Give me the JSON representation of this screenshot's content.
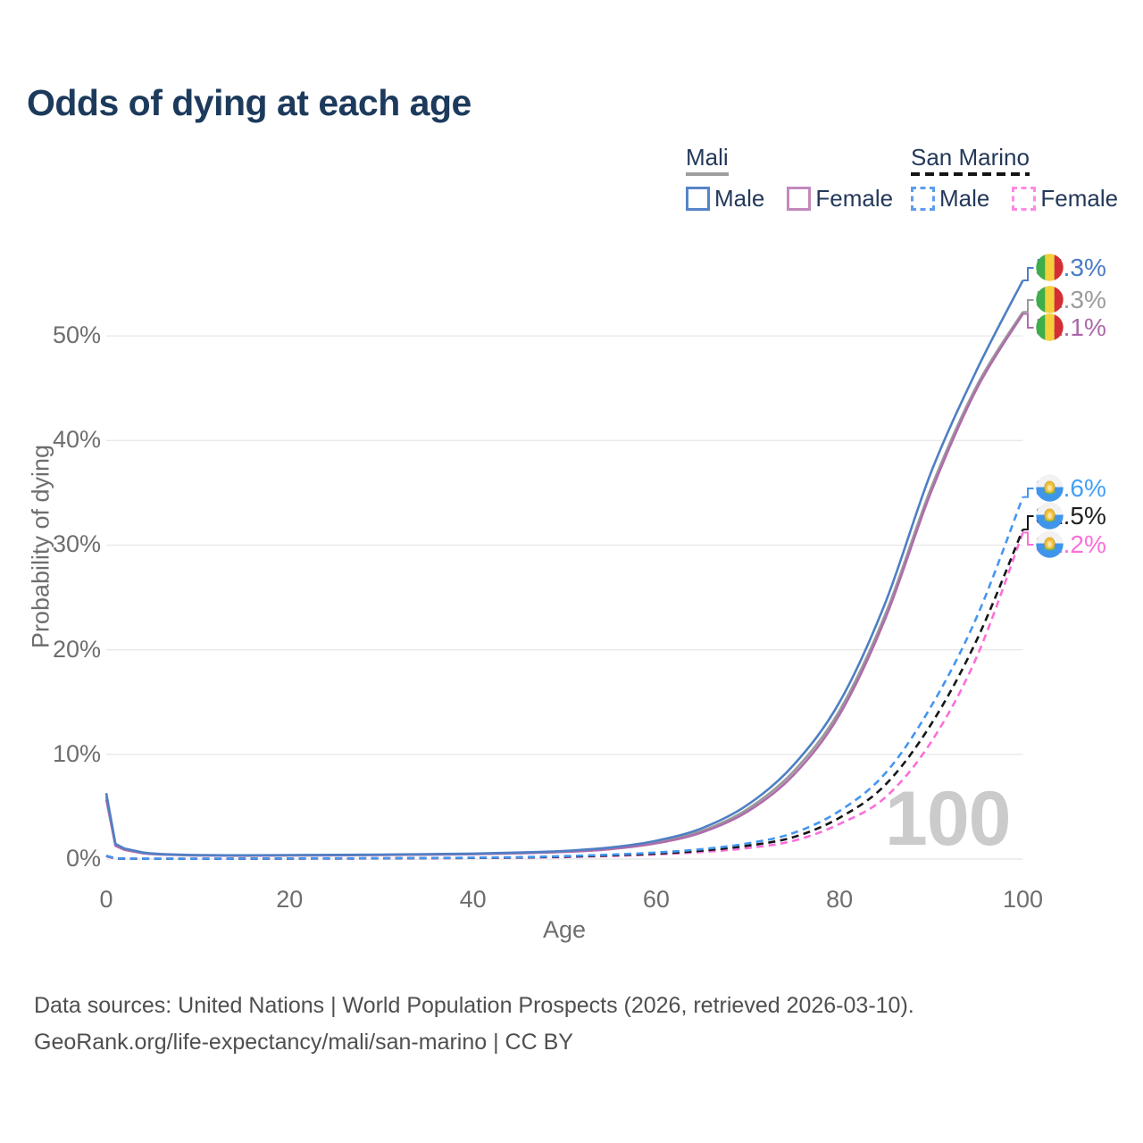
{
  "title": "Odds of dying at each age",
  "legend": {
    "groups": [
      {
        "label": "Mali",
        "line_style": "solid",
        "underline_color": "#9e9e9e",
        "items": [
          {
            "label": "Male",
            "color": "#5585c7"
          },
          {
            "label": "Female",
            "color": "#c289bc"
          }
        ]
      },
      {
        "label": "San Marino",
        "line_style": "dashed",
        "underline_color": "#141414",
        "items": [
          {
            "label": "Male",
            "color": "#5c9df0"
          },
          {
            "label": "Female",
            "color": "#fc8ae2"
          }
        ]
      }
    ]
  },
  "watermark": "100",
  "axes": {
    "x_title": "Age",
    "y_title": "Probability of dying"
  },
  "end_labels": [
    {
      "value": "55.3%",
      "color": "#4a7cc7",
      "flag": "mali"
    },
    {
      "value": "52.3%",
      "color": "#9b9b9b",
      "flag": "mali"
    },
    {
      "value": "52.1%",
      "color": "#ab67a8",
      "flag": "mali"
    },
    {
      "value": "34.6%",
      "color": "#43a0f5",
      "flag": "san-marino"
    },
    {
      "value": "31.5%",
      "color": "#1f1f1f",
      "flag": "san-marino"
    },
    {
      "value": "31.2%",
      "color": "#fb6fd8",
      "flag": "san-marino"
    }
  ],
  "chart_data": {
    "type": "line",
    "title": "Odds of dying at each age",
    "xlabel": "Age",
    "ylabel": "Probability of dying",
    "xlim": [
      0,
      100
    ],
    "ylim": [
      0,
      57
    ],
    "grid": "horizontal",
    "legend_position": "top-right",
    "x_ticks": [
      0,
      20,
      40,
      60,
      80,
      100
    ],
    "y_tick_values": [
      0,
      10,
      20,
      30,
      40,
      50
    ],
    "y_tick_labels": [
      "0%",
      "10%",
      "20%",
      "30%",
      "40%",
      "50%"
    ],
    "x": [
      0,
      1,
      2,
      4,
      6,
      8,
      10,
      15,
      20,
      25,
      30,
      35,
      40,
      45,
      50,
      55,
      60,
      65,
      70,
      75,
      80,
      85,
      90,
      95,
      100
    ],
    "series": [
      {
        "name": "Mali Male",
        "color": "#4e7fc4",
        "dash": false,
        "end_value_pct": 55.3,
        "values": [
          6.3,
          1.45,
          1.0,
          0.62,
          0.48,
          0.42,
          0.38,
          0.36,
          0.38,
          0.4,
          0.43,
          0.47,
          0.52,
          0.62,
          0.78,
          1.1,
          1.75,
          2.95,
          5.2,
          9.0,
          15.0,
          24.5,
          37.0,
          46.8,
          55.3
        ]
      },
      {
        "name": "Mali both sexes (gray, unlabeled)",
        "color": "#9a9a9a",
        "dash": false,
        "end_value_pct": 52.3,
        "values": [
          6.0,
          1.35,
          0.94,
          0.58,
          0.45,
          0.4,
          0.36,
          0.34,
          0.36,
          0.38,
          0.4,
          0.44,
          0.49,
          0.58,
          0.72,
          1.0,
          1.6,
          2.7,
          4.8,
          8.4,
          14.2,
          23.4,
          35.5,
          45.3,
          52.3
        ]
      },
      {
        "name": "Mali Female",
        "color": "#af6cab",
        "dash": false,
        "end_value_pct": 52.1,
        "values": [
          5.7,
          1.26,
          0.88,
          0.55,
          0.43,
          0.38,
          0.34,
          0.32,
          0.34,
          0.36,
          0.38,
          0.42,
          0.46,
          0.55,
          0.68,
          0.95,
          1.5,
          2.55,
          4.55,
          8.05,
          13.8,
          23.0,
          35.1,
          45.0,
          52.1
        ]
      },
      {
        "name": "San Marino Male",
        "color": "#4596f0",
        "dash": true,
        "end_value_pct": 34.6,
        "values": [
          0.32,
          0.06,
          0.04,
          0.03,
          0.03,
          0.03,
          0.03,
          0.04,
          0.06,
          0.07,
          0.08,
          0.1,
          0.13,
          0.18,
          0.28,
          0.42,
          0.62,
          0.95,
          1.5,
          2.5,
          4.6,
          8.2,
          14.6,
          23.2,
          34.6
        ]
      },
      {
        "name": "San Marino both sexes (black, unlabeled)",
        "color": "#161616",
        "dash": true,
        "end_value_pct": 31.5,
        "values": [
          0.3,
          0.05,
          0.035,
          0.027,
          0.025,
          0.025,
          0.027,
          0.035,
          0.05,
          0.06,
          0.07,
          0.09,
          0.11,
          0.15,
          0.23,
          0.35,
          0.52,
          0.8,
          1.28,
          2.1,
          3.95,
          7.1,
          12.9,
          21.0,
          31.5
        ]
      },
      {
        "name": "San Marino Female",
        "color": "#fb6fd8",
        "dash": true,
        "end_value_pct": 31.2,
        "values": [
          0.27,
          0.045,
          0.03,
          0.024,
          0.022,
          0.022,
          0.024,
          0.03,
          0.04,
          0.05,
          0.06,
          0.08,
          0.1,
          0.13,
          0.19,
          0.29,
          0.44,
          0.67,
          1.05,
          1.75,
          3.35,
          5.9,
          11.2,
          19.4,
          31.2
        ]
      }
    ]
  },
  "footer": {
    "line1": "Data sources: United Nations | World Population Prospects (2026, retrieved 2026-03-10).",
    "line2": "GeoRank.org/life-expectancy/mali/san-marino | CC BY"
  }
}
